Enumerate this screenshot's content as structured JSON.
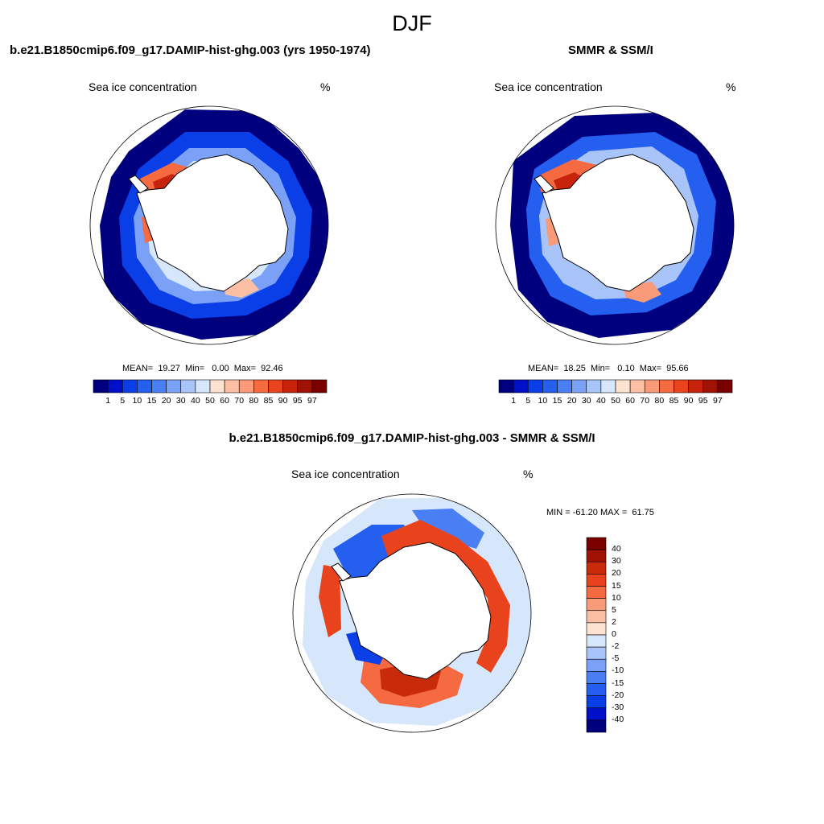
{
  "title": "DJF",
  "panels": [
    {
      "id": "model",
      "title": "b.e21.B1850cmip6.f09_g17.DAMIP-hist-ghg.003 (yrs 1950-1974)",
      "left_label": "Sea ice concentration",
      "right_label": "%",
      "stats": "MEAN=  19.27  Min=   0.00  Max=  92.46"
    },
    {
      "id": "obs",
      "title": "SMMR & SSM/I",
      "left_label": "Sea ice concentration",
      "right_label": "%",
      "stats": "MEAN=  18.25  Min=   0.10  Max=  95.66"
    },
    {
      "id": "diff",
      "title": "b.e21.B1850cmip6.f09_g17.DAMIP-hist-ghg.003 - SMMR & SSM/I",
      "left_label": "Sea ice concentration",
      "right_label": "%",
      "stats": "MIN = -61.20 MAX =  61.75"
    }
  ],
  "colorbar_conc": {
    "labels": [
      "1",
      "5",
      "10",
      "15",
      "20",
      "30",
      "40",
      "50",
      "60",
      "70",
      "80",
      "85",
      "90",
      "95",
      "97"
    ],
    "colors": [
      "#00007f",
      "#0010c8",
      "#0a3ee6",
      "#245ff0",
      "#4a7ff4",
      "#7ba1f6",
      "#a9c4f8",
      "#d6e6fb",
      "#fde2d0",
      "#fbc0a4",
      "#f99a78",
      "#f56a40",
      "#e8431c",
      "#c8240c",
      "#a01204",
      "#7a0000"
    ]
  },
  "colorbar_diff": {
    "labels": [
      "40",
      "30",
      "20",
      "15",
      "10",
      "5",
      "2",
      "0",
      "-2",
      "-5",
      "-10",
      "-15",
      "-20",
      "-30",
      "-40"
    ],
    "colors": [
      "#7a0000",
      "#a01204",
      "#c82a0a",
      "#e8431c",
      "#f56a40",
      "#f99a78",
      "#fbc0a4",
      "#fde2d0",
      "#d6e6fb",
      "#a9c4f8",
      "#7ba1f6",
      "#4a7ff4",
      "#245ff0",
      "#0a3ee6",
      "#0010c8",
      "#00007f"
    ]
  }
}
